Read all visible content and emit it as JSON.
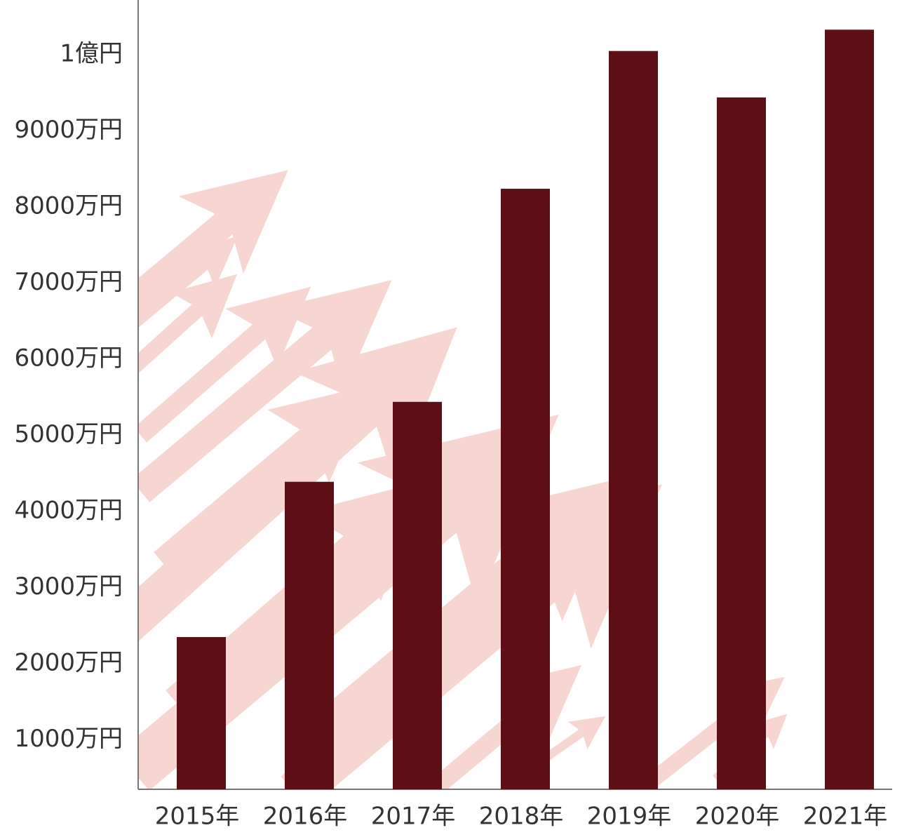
{
  "chart_data": {
    "type": "bar",
    "categories": [
      "2015年",
      "2016年",
      "2017年",
      "2018年",
      "2019年",
      "2020年",
      "2021年"
    ],
    "values": [
      2350,
      4390,
      5440,
      8240,
      10050,
      9440,
      10330
    ],
    "color": "#5e0e15",
    "ylim": [
      350,
      10720
    ],
    "yticks": [
      {
        "value": 1000,
        "label": "1000万円"
      },
      {
        "value": 2000,
        "label": "2000万円"
      },
      {
        "value": 3000,
        "label": "3000万円"
      },
      {
        "value": 4000,
        "label": "4000万円"
      },
      {
        "value": 5000,
        "label": "5000万円"
      },
      {
        "value": 6000,
        "label": "6000万円"
      },
      {
        "value": 7000,
        "label": "7000万円"
      },
      {
        "value": 8000,
        "label": "8000万円"
      },
      {
        "value": 9000,
        "label": "9000万円"
      },
      {
        "value": 10000,
        "label": "1億円"
      }
    ],
    "grid": false
  }
}
